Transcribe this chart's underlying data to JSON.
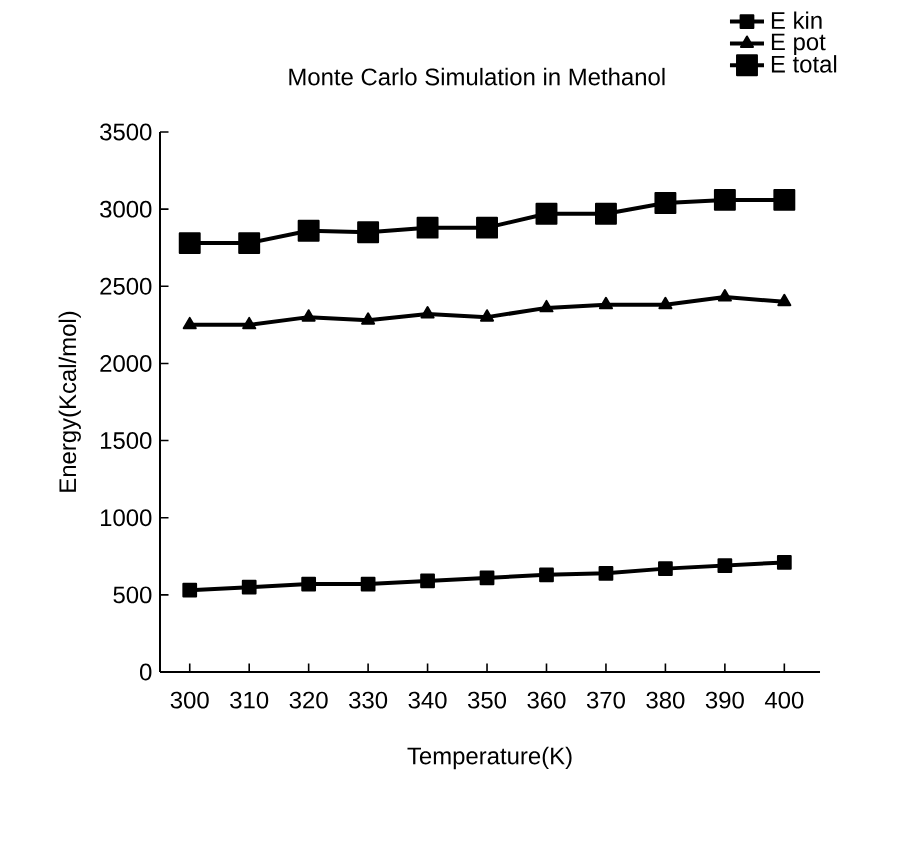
{
  "chart_data": {
    "type": "line",
    "title": "Monte Carlo Simulation in Methanol",
    "xlabel": "Temperature(K)",
    "ylabel": "Energy(Kcal/mol)",
    "x": [
      300,
      310,
      320,
      330,
      340,
      350,
      360,
      370,
      380,
      390,
      400
    ],
    "series": [
      {
        "name": "E kin",
        "color": "#000000",
        "marker": "square",
        "values": [
          530,
          550,
          570,
          570,
          590,
          610,
          630,
          640,
          670,
          690,
          710
        ]
      },
      {
        "name": "E pot",
        "color": "#000000",
        "marker": "triangle",
        "values": [
          2250,
          2250,
          2300,
          2280,
          2320,
          2300,
          2360,
          2380,
          2380,
          2430,
          2400
        ]
      },
      {
        "name": "E total",
        "color": "#000000",
        "marker": "square",
        "values": [
          2780,
          2780,
          2860,
          2850,
          2880,
          2880,
          2970,
          2970,
          3040,
          3060,
          3060
        ]
      }
    ],
    "xlim": [
      295,
      406
    ],
    "xticks": [
      300,
      310,
      320,
      330,
      340,
      350,
      360,
      370,
      380,
      390,
      400
    ],
    "ylim": [
      0,
      3500
    ],
    "yticks": [
      0,
      500,
      1000,
      1500,
      2000,
      2500,
      3000,
      3500
    ],
    "grid": false,
    "legend": "top right",
    "line_style": "solid"
  }
}
